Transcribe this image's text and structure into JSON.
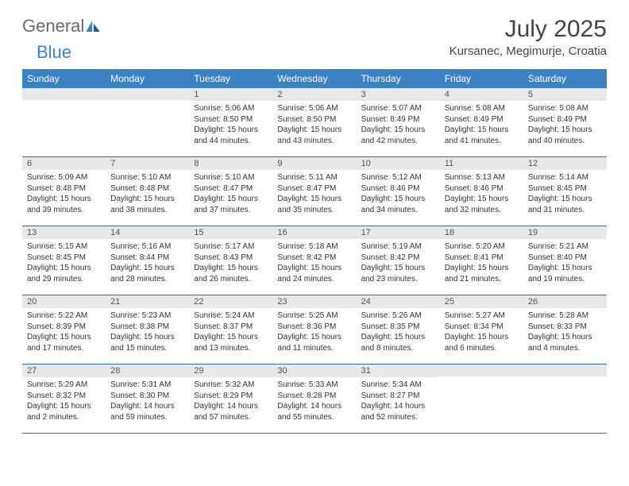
{
  "brand": {
    "general": "General",
    "blue": "Blue"
  },
  "title": "July 2025",
  "location": "Kursanec, Megimurje, Croatia",
  "colors": {
    "header_bg": "#3b82c4",
    "header_text": "#ffffff",
    "daynum_bg": "#e8e8e8",
    "border": "#3b6a9a",
    "text": "#333333",
    "title_text": "#444444",
    "logo_gray": "#6b6b6b",
    "logo_blue": "#3b82c4"
  },
  "day_names": [
    "Sunday",
    "Monday",
    "Tuesday",
    "Wednesday",
    "Thursday",
    "Friday",
    "Saturday"
  ],
  "weeks": [
    [
      null,
      null,
      {
        "n": "1",
        "sr": "5:06 AM",
        "ss": "8:50 PM",
        "dl": "15 hours and 44 minutes."
      },
      {
        "n": "2",
        "sr": "5:06 AM",
        "ss": "8:50 PM",
        "dl": "15 hours and 43 minutes."
      },
      {
        "n": "3",
        "sr": "5:07 AM",
        "ss": "8:49 PM",
        "dl": "15 hours and 42 minutes."
      },
      {
        "n": "4",
        "sr": "5:08 AM",
        "ss": "8:49 PM",
        "dl": "15 hours and 41 minutes."
      },
      {
        "n": "5",
        "sr": "5:08 AM",
        "ss": "8:49 PM",
        "dl": "15 hours and 40 minutes."
      }
    ],
    [
      {
        "n": "6",
        "sr": "5:09 AM",
        "ss": "8:48 PM",
        "dl": "15 hours and 39 minutes."
      },
      {
        "n": "7",
        "sr": "5:10 AM",
        "ss": "8:48 PM",
        "dl": "15 hours and 38 minutes."
      },
      {
        "n": "8",
        "sr": "5:10 AM",
        "ss": "8:47 PM",
        "dl": "15 hours and 37 minutes."
      },
      {
        "n": "9",
        "sr": "5:11 AM",
        "ss": "8:47 PM",
        "dl": "15 hours and 35 minutes."
      },
      {
        "n": "10",
        "sr": "5:12 AM",
        "ss": "8:46 PM",
        "dl": "15 hours and 34 minutes."
      },
      {
        "n": "11",
        "sr": "5:13 AM",
        "ss": "8:46 PM",
        "dl": "15 hours and 32 minutes."
      },
      {
        "n": "12",
        "sr": "5:14 AM",
        "ss": "8:45 PM",
        "dl": "15 hours and 31 minutes."
      }
    ],
    [
      {
        "n": "13",
        "sr": "5:15 AM",
        "ss": "8:45 PM",
        "dl": "15 hours and 29 minutes."
      },
      {
        "n": "14",
        "sr": "5:16 AM",
        "ss": "8:44 PM",
        "dl": "15 hours and 28 minutes."
      },
      {
        "n": "15",
        "sr": "5:17 AM",
        "ss": "8:43 PM",
        "dl": "15 hours and 26 minutes."
      },
      {
        "n": "16",
        "sr": "5:18 AM",
        "ss": "8:42 PM",
        "dl": "15 hours and 24 minutes."
      },
      {
        "n": "17",
        "sr": "5:19 AM",
        "ss": "8:42 PM",
        "dl": "15 hours and 23 minutes."
      },
      {
        "n": "18",
        "sr": "5:20 AM",
        "ss": "8:41 PM",
        "dl": "15 hours and 21 minutes."
      },
      {
        "n": "19",
        "sr": "5:21 AM",
        "ss": "8:40 PM",
        "dl": "15 hours and 19 minutes."
      }
    ],
    [
      {
        "n": "20",
        "sr": "5:22 AM",
        "ss": "8:39 PM",
        "dl": "15 hours and 17 minutes."
      },
      {
        "n": "21",
        "sr": "5:23 AM",
        "ss": "8:38 PM",
        "dl": "15 hours and 15 minutes."
      },
      {
        "n": "22",
        "sr": "5:24 AM",
        "ss": "8:37 PM",
        "dl": "15 hours and 13 minutes."
      },
      {
        "n": "23",
        "sr": "5:25 AM",
        "ss": "8:36 PM",
        "dl": "15 hours and 11 minutes."
      },
      {
        "n": "24",
        "sr": "5:26 AM",
        "ss": "8:35 PM",
        "dl": "15 hours and 8 minutes."
      },
      {
        "n": "25",
        "sr": "5:27 AM",
        "ss": "8:34 PM",
        "dl": "15 hours and 6 minutes."
      },
      {
        "n": "26",
        "sr": "5:28 AM",
        "ss": "8:33 PM",
        "dl": "15 hours and 4 minutes."
      }
    ],
    [
      {
        "n": "27",
        "sr": "5:29 AM",
        "ss": "8:32 PM",
        "dl": "15 hours and 2 minutes."
      },
      {
        "n": "28",
        "sr": "5:31 AM",
        "ss": "8:30 PM",
        "dl": "14 hours and 59 minutes."
      },
      {
        "n": "29",
        "sr": "5:32 AM",
        "ss": "8:29 PM",
        "dl": "14 hours and 57 minutes."
      },
      {
        "n": "30",
        "sr": "5:33 AM",
        "ss": "8:28 PM",
        "dl": "14 hours and 55 minutes."
      },
      {
        "n": "31",
        "sr": "5:34 AM",
        "ss": "8:27 PM",
        "dl": "14 hours and 52 minutes."
      },
      null,
      null
    ]
  ],
  "labels": {
    "sunrise": "Sunrise:",
    "sunset": "Sunset:",
    "daylight": "Daylight:"
  }
}
